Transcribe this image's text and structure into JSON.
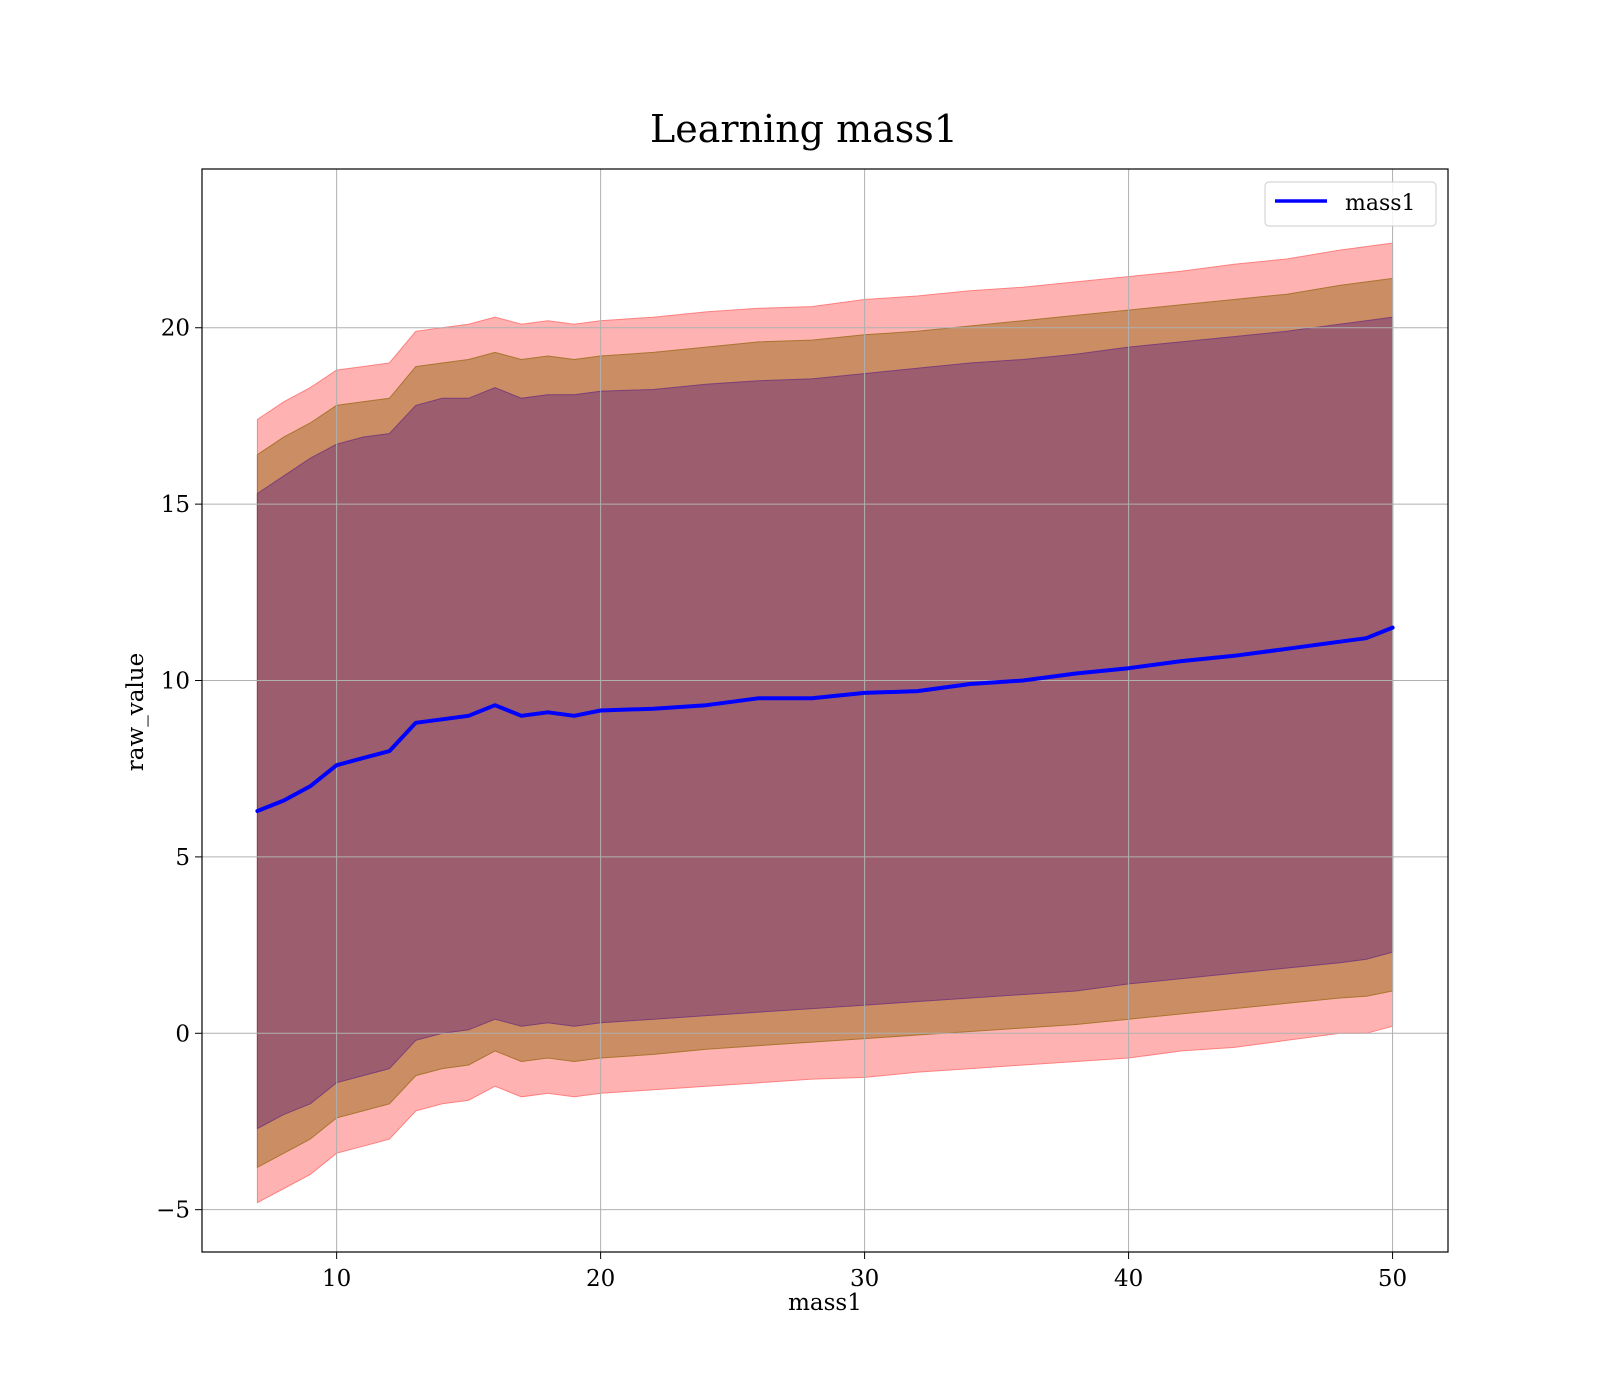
{
  "chart_data": {
    "type": "area",
    "title": "Learning mass1",
    "xlabel": "mass1",
    "ylabel": "raw_value",
    "xlim": [
      4.9,
      52.1
    ],
    "ylim": [
      -6.2,
      24.5
    ],
    "xticks": [
      10,
      20,
      30,
      40,
      50
    ],
    "yticks": [
      -5,
      0,
      5,
      10,
      15,
      20
    ],
    "xtick_labels": [
      "10",
      "20",
      "30",
      "40",
      "50"
    ],
    "ytick_labels": [
      "−5",
      "0",
      "5",
      "10",
      "15",
      "20"
    ],
    "grid": true,
    "legend": {
      "position": "top-right",
      "entries": [
        "mass1"
      ]
    },
    "colors": {
      "line": "#0000ff",
      "band_outer": "#ff7f7f",
      "band_middle": "#a9752f",
      "band_inner": "#7d3f77",
      "grid": "#b0b0b0"
    },
    "x": [
      7,
      8,
      9,
      10,
      11,
      12,
      13,
      14,
      15,
      16,
      17,
      18,
      19,
      20,
      22,
      24,
      26,
      28,
      30,
      32,
      34,
      36,
      38,
      40,
      42,
      44,
      46,
      48,
      49,
      50
    ],
    "series": [
      {
        "name": "mass1",
        "values": [
          6.3,
          6.6,
          7.0,
          7.6,
          7.8,
          8.0,
          8.8,
          8.9,
          9.0,
          9.3,
          9.0,
          9.1,
          9.0,
          9.15,
          9.2,
          9.3,
          9.5,
          9.5,
          9.65,
          9.7,
          9.9,
          10.0,
          10.2,
          10.35,
          10.55,
          10.7,
          10.9,
          11.1,
          11.2,
          11.5
        ]
      }
    ],
    "bands": [
      {
        "level": "outer",
        "upper": [
          17.4,
          17.9,
          18.3,
          18.8,
          18.9,
          19.0,
          19.9,
          20.0,
          20.1,
          20.3,
          20.1,
          20.2,
          20.1,
          20.2,
          20.3,
          20.45,
          20.55,
          20.6,
          20.8,
          20.9,
          21.05,
          21.15,
          21.3,
          21.45,
          21.6,
          21.8,
          21.95,
          22.2,
          22.3,
          22.4
        ],
        "lower": [
          -4.8,
          -4.4,
          -4.0,
          -3.4,
          -3.2,
          -3.0,
          -2.2,
          -2.0,
          -1.9,
          -1.5,
          -1.8,
          -1.7,
          -1.8,
          -1.7,
          -1.6,
          -1.5,
          -1.4,
          -1.3,
          -1.25,
          -1.1,
          -1.0,
          -0.9,
          -0.8,
          -0.7,
          -0.5,
          -0.4,
          -0.2,
          0.0,
          0.0,
          0.2
        ]
      },
      {
        "level": "middle",
        "upper": [
          16.4,
          16.9,
          17.3,
          17.8,
          17.9,
          18.0,
          18.9,
          19.0,
          19.1,
          19.3,
          19.1,
          19.2,
          19.1,
          19.2,
          19.3,
          19.45,
          19.6,
          19.65,
          19.8,
          19.9,
          20.05,
          20.2,
          20.35,
          20.5,
          20.65,
          20.8,
          20.95,
          21.2,
          21.3,
          21.4
        ],
        "lower": [
          -3.8,
          -3.4,
          -3.0,
          -2.4,
          -2.2,
          -2.0,
          -1.2,
          -1.0,
          -0.9,
          -0.5,
          -0.8,
          -0.7,
          -0.8,
          -0.7,
          -0.6,
          -0.45,
          -0.35,
          -0.25,
          -0.15,
          -0.05,
          0.05,
          0.15,
          0.25,
          0.4,
          0.55,
          0.7,
          0.85,
          1.0,
          1.05,
          1.2
        ]
      },
      {
        "level": "inner",
        "upper": [
          15.3,
          15.8,
          16.3,
          16.7,
          16.9,
          17.0,
          17.8,
          18.0,
          18.0,
          18.3,
          18.0,
          18.1,
          18.1,
          18.2,
          18.25,
          18.4,
          18.5,
          18.55,
          18.7,
          18.85,
          19.0,
          19.1,
          19.25,
          19.45,
          19.6,
          19.75,
          19.9,
          20.1,
          20.2,
          20.3
        ],
        "lower": [
          -2.7,
          -2.3,
          -2.0,
          -1.4,
          -1.2,
          -1.0,
          -0.2,
          0.0,
          0.1,
          0.4,
          0.2,
          0.3,
          0.2,
          0.3,
          0.4,
          0.5,
          0.6,
          0.7,
          0.8,
          0.9,
          1.0,
          1.1,
          1.2,
          1.4,
          1.55,
          1.7,
          1.85,
          2.0,
          2.1,
          2.3
        ]
      }
    ]
  }
}
